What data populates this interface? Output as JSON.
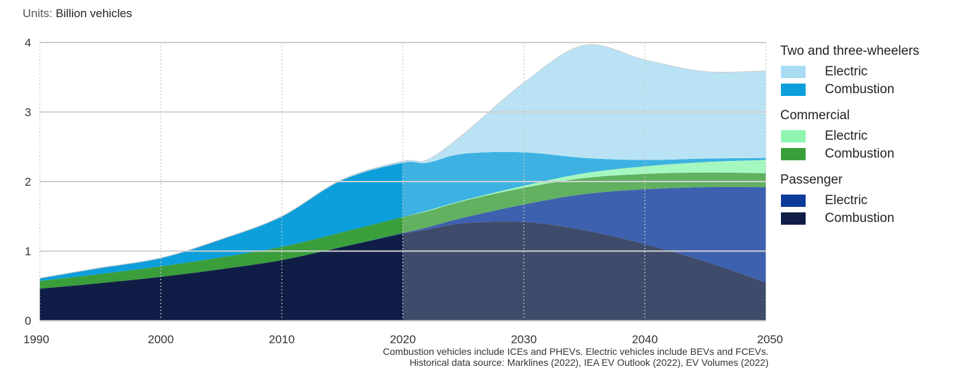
{
  "units": {
    "prefix": "Units: ",
    "value": "Billion vehicles"
  },
  "legend": {
    "groups": [
      {
        "title": "Two and three-wheelers",
        "items": [
          {
            "label": "Electric",
            "color": "#a8dcf3"
          },
          {
            "label": "Combustion",
            "color": "#0d9fdb"
          }
        ]
      },
      {
        "title": "Commercial",
        "items": [
          {
            "label": "Electric",
            "color": "#8ff5b1"
          },
          {
            "label": "Combustion",
            "color": "#3a9e3a"
          }
        ]
      },
      {
        "title": "Passenger",
        "items": [
          {
            "label": "Electric",
            "color": "#0e3a9c"
          },
          {
            "label": "Combustion",
            "color": "#101e47"
          }
        ]
      }
    ]
  },
  "footnote": {
    "line1": "Combustion vehicles include ICEs and PHEVs. Electric vehicles include BEVs and FCEVs.",
    "line2": "Historical data source: Marklines (2022), IEA EV Outlook (2022), EV Volumes (2022)"
  },
  "chart_data": {
    "type": "area",
    "stacked": true,
    "x": [
      1990,
      1995,
      2000,
      2005,
      2010,
      2015,
      2020,
      2022,
      2025,
      2030,
      2035,
      2040,
      2045,
      2050
    ],
    "xticks": [
      1990,
      2000,
      2010,
      2020,
      2030,
      2040,
      2050
    ],
    "yticks": [
      0,
      1,
      2,
      3,
      4
    ],
    "xlim": [
      1990,
      2050
    ],
    "ylim": [
      0,
      4
    ],
    "projection_start": 2020,
    "grid": true,
    "series": [
      {
        "group": "Passenger",
        "type": "Combustion",
        "color": "#101e47",
        "values": [
          0.46,
          0.54,
          0.63,
          0.74,
          0.87,
          1.06,
          1.25,
          1.31,
          1.4,
          1.42,
          1.3,
          1.1,
          0.85,
          0.55
        ]
      },
      {
        "group": "Passenger",
        "type": "Electric",
        "color": "#0e3a9c",
        "values": [
          0,
          0,
          0,
          0,
          0,
          0,
          0.01,
          0.03,
          0.08,
          0.25,
          0.52,
          0.79,
          1.07,
          1.37
        ]
      },
      {
        "group": "Commercial",
        "type": "Combustion",
        "color": "#3a9e3a",
        "values": [
          0.11,
          0.13,
          0.15,
          0.17,
          0.19,
          0.21,
          0.23,
          0.23,
          0.24,
          0.24,
          0.23,
          0.22,
          0.21,
          0.2
        ]
      },
      {
        "group": "Commercial",
        "type": "Electric",
        "color": "#8ff5b1",
        "values": [
          0,
          0,
          0,
          0,
          0,
          0,
          0,
          0.01,
          0.01,
          0.03,
          0.07,
          0.11,
          0.15,
          0.19
        ]
      },
      {
        "group": "Two and three-wheelers",
        "type": "Combustion",
        "color": "#0d9fdb",
        "values": [
          0.04,
          0.09,
          0.12,
          0.26,
          0.44,
          0.75,
          0.78,
          0.69,
          0.67,
          0.48,
          0.22,
          0.09,
          0.05,
          0.03
        ]
      },
      {
        "group": "Two and three-wheelers",
        "type": "Electric",
        "color": "#a8dcf3",
        "values": [
          0,
          0,
          0,
          0,
          0,
          0.01,
          0.02,
          0.04,
          0.28,
          1.0,
          1.62,
          1.44,
          1.25,
          1.25
        ]
      }
    ]
  }
}
